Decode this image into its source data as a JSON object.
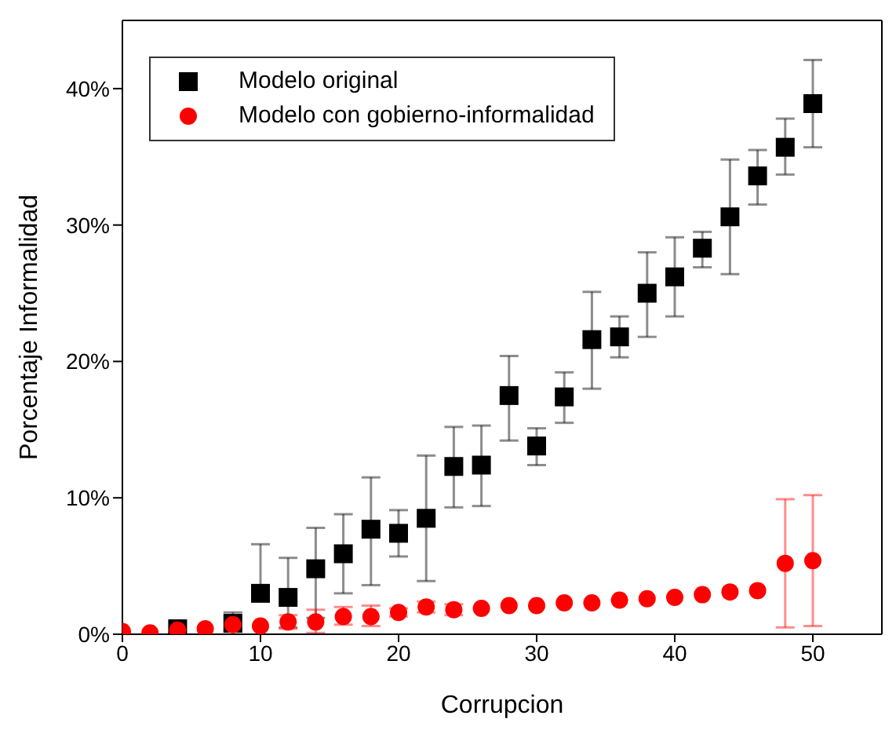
{
  "chart_data": {
    "type": "scatter",
    "xlabel": "Corrupcion",
    "ylabel": "Porcentaje Informalidad",
    "x": [
      0,
      2,
      4,
      6,
      8,
      10,
      12,
      14,
      16,
      18,
      20,
      22,
      24,
      26,
      28,
      30,
      32,
      34,
      36,
      38,
      40,
      42,
      44,
      46,
      48,
      50
    ],
    "series": [
      {
        "name": "Modelo original",
        "color": "#000000",
        "marker": "square",
        "values": [
          null,
          null,
          0.4,
          null,
          0.8,
          3.0,
          2.7,
          4.8,
          5.9,
          7.7,
          7.4,
          8.5,
          12.3,
          12.4,
          17.5,
          13.8,
          17.4,
          21.6,
          21.8,
          25.0,
          26.2,
          28.3,
          30.6,
          33.6,
          35.7,
          38.9
        ],
        "errors": [
          null,
          null,
          null,
          null,
          [
            0.3,
            1.6
          ],
          [
            3.0,
            6.6
          ],
          [
            0.5,
            5.6
          ],
          [
            1.2,
            7.8
          ],
          [
            3.0,
            8.8
          ],
          [
            3.6,
            11.5
          ],
          [
            5.7,
            9.1
          ],
          [
            3.9,
            13.1
          ],
          [
            9.3,
            15.2
          ],
          [
            9.4,
            15.3
          ],
          [
            14.2,
            20.4
          ],
          [
            12.4,
            15.1
          ],
          [
            15.5,
            19.2
          ],
          [
            18.0,
            25.1
          ],
          [
            20.3,
            23.3
          ],
          [
            21.8,
            28.0
          ],
          [
            23.3,
            29.1
          ],
          [
            26.9,
            29.5
          ],
          [
            26.4,
            34.8
          ],
          [
            31.5,
            35.5
          ],
          [
            33.7,
            37.8
          ],
          [
            35.7,
            42.1
          ]
        ]
      },
      {
        "name": "Modelo con gobierno-informalidad",
        "color": "#ff0000",
        "marker": "circle",
        "values": [
          0.2,
          0.1,
          0.3,
          0.4,
          0.7,
          0.6,
          0.9,
          0.9,
          1.3,
          1.3,
          1.6,
          2.0,
          1.8,
          1.9,
          2.1,
          2.1,
          2.3,
          2.3,
          2.5,
          2.6,
          2.7,
          2.9,
          3.1,
          3.2,
          5.2,
          5.4
        ],
        "errors": [
          null,
          null,
          null,
          null,
          [
            0.2,
            1.2
          ],
          null,
          [
            0.4,
            1.4
          ],
          [
            0.1,
            1.8
          ],
          [
            0.7,
            2.0
          ],
          [
            0.6,
            2.1
          ],
          [
            1.3,
            1.9
          ],
          [
            1.6,
            2.4
          ],
          [
            1.4,
            2.2
          ],
          null,
          null,
          null,
          null,
          null,
          null,
          null,
          null,
          null,
          null,
          null,
          [
            0.5,
            9.9
          ],
          [
            0.6,
            10.2
          ]
        ]
      }
    ],
    "xlim": [
      0,
      55
    ],
    "xticks": [
      0,
      10,
      20,
      30,
      40,
      50
    ],
    "ylim": [
      0,
      45
    ],
    "yticks": [
      {
        "value": 0,
        "label": "0%"
      },
      {
        "value": 10,
        "label": "10%"
      },
      {
        "value": 20,
        "label": "20%"
      },
      {
        "value": 30,
        "label": "30%"
      },
      {
        "value": 40,
        "label": "40%"
      }
    ],
    "grid": false,
    "legend": "top left"
  }
}
